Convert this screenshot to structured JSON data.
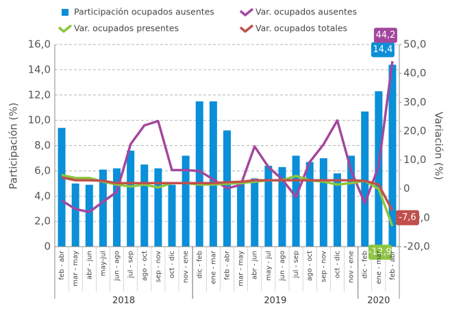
{
  "chart_data": {
    "type": "bar",
    "groups": [
      {
        "label": "2018",
        "categories": [
          "feb - abr",
          "mar - may",
          "abr - jun",
          "may-jul",
          "jun - ago",
          "jul - sep",
          "ago - oct",
          "sep - nov",
          "oct - dic",
          "nov - ene"
        ]
      },
      {
        "label": "2019",
        "categories": [
          "dic - feb",
          "ene - mar",
          "feb - abr",
          "mar - may",
          "abr - jun",
          "may - jul",
          "jun - ago",
          "jul - sep",
          "ago - oct",
          "sep - nov",
          "oct - dic",
          "nov - ene"
        ]
      },
      {
        "label": "2020",
        "categories": [
          "dic - feb",
          "ene - mar",
          "feb - abr"
        ]
      }
    ],
    "ylabel": "Participación (%)",
    "y2label": "Variación (%)",
    "ylim": [
      0,
      16
    ],
    "yticks": [
      0,
      {
        "value": 2,
        "label": "2,0"
      },
      {
        "value": 4,
        "label": "4,0"
      },
      {
        "value": 6,
        "label": "6,0"
      },
      {
        "value": 8,
        "label": "8,0"
      },
      {
        "value": 10,
        "label": "10,0"
      },
      {
        "value": 12,
        "label": "12,0"
      },
      {
        "value": 14,
        "label": "14,0"
      },
      {
        "value": 16,
        "label": "16,0"
      }
    ],
    "y2lim": [
      -20,
      50
    ],
    "y2ticks": [
      {
        "value": -20,
        "label": "-20,0"
      },
      {
        "value": -10,
        "label": "-10,0"
      },
      0,
      {
        "value": 10,
        "label": "10,0"
      },
      {
        "value": 20,
        "label": "20,0"
      },
      {
        "value": 30,
        "label": "30,0"
      },
      {
        "value": 40,
        "label": "40,0"
      },
      {
        "value": 50,
        "label": "50,0"
      }
    ],
    "grid": true,
    "series": [
      {
        "name": "Participación ocupados ausentes",
        "type": "bar",
        "color": "#0a8fd8",
        "values": [
          9.4,
          5.0,
          4.9,
          6.1,
          6.2,
          7.6,
          6.5,
          6.2,
          4.9,
          7.2,
          11.5,
          11.5,
          9.2,
          5.0,
          5.4,
          6.4,
          6.3,
          7.2,
          6.7,
          7.0,
          5.8,
          7.2,
          10.7,
          12.3,
          14.4
        ],
        "value_labels": [
          null,
          null,
          null,
          null,
          null,
          null,
          null,
          null,
          null,
          null,
          null,
          null,
          null,
          null,
          null,
          null,
          null,
          null,
          null,
          null,
          null,
          null,
          null,
          null,
          "14,4"
        ]
      },
      {
        "name": "Var. ocupados ausentes",
        "type": "line",
        "axis": "y2",
        "color": "#a3479e",
        "values": [
          -4,
          -7,
          -8,
          -4.5,
          -1,
          15.5,
          22,
          23.5,
          6.5,
          6.5,
          6.2,
          3.3,
          0.2,
          1.4,
          14.7,
          7.6,
          3.3,
          -2.8,
          9.3,
          15.4,
          23.7,
          6.4,
          -5,
          7.8,
          44.2
        ],
        "value_labels": [
          null,
          null,
          null,
          null,
          null,
          null,
          null,
          null,
          null,
          null,
          null,
          null,
          null,
          null,
          null,
          null,
          null,
          null,
          null,
          null,
          null,
          null,
          null,
          null,
          "44,2"
        ]
      },
      {
        "name": "Var. ocupados presentes",
        "type": "line",
        "axis": "y2",
        "color": "#8cc63f",
        "values": [
          4.8,
          3.8,
          3.8,
          2.5,
          1.5,
          0.8,
          1.5,
          0.5,
          2.0,
          2.0,
          1.5,
          1.5,
          1.8,
          2.0,
          2.5,
          3.0,
          3.0,
          4.5,
          3.0,
          2.5,
          1.5,
          2.0,
          2.8,
          0.0,
          -12.9
        ],
        "value_labels": [
          null,
          null,
          null,
          null,
          null,
          null,
          null,
          null,
          null,
          null,
          null,
          null,
          null,
          null,
          null,
          null,
          null,
          null,
          null,
          null,
          null,
          null,
          null,
          null,
          "-12,9"
        ]
      },
      {
        "name": "Var. ocupados totales",
        "type": "line",
        "axis": "y2",
        "color": "#c0504d",
        "values": [
          4.0,
          3.0,
          3.0,
          2.8,
          2.0,
          2.0,
          2.0,
          2.0,
          2.0,
          2.0,
          2.0,
          2.0,
          2.3,
          2.5,
          3.0,
          3.0,
          3.0,
          3.0,
          3.0,
          3.0,
          3.0,
          3.0,
          2.8,
          1.5,
          -7.6
        ],
        "value_labels": [
          null,
          null,
          null,
          null,
          null,
          null,
          null,
          null,
          null,
          null,
          null,
          null,
          null,
          null,
          null,
          null,
          null,
          null,
          null,
          null,
          null,
          null,
          null,
          null,
          "-7,6"
        ]
      }
    ]
  }
}
